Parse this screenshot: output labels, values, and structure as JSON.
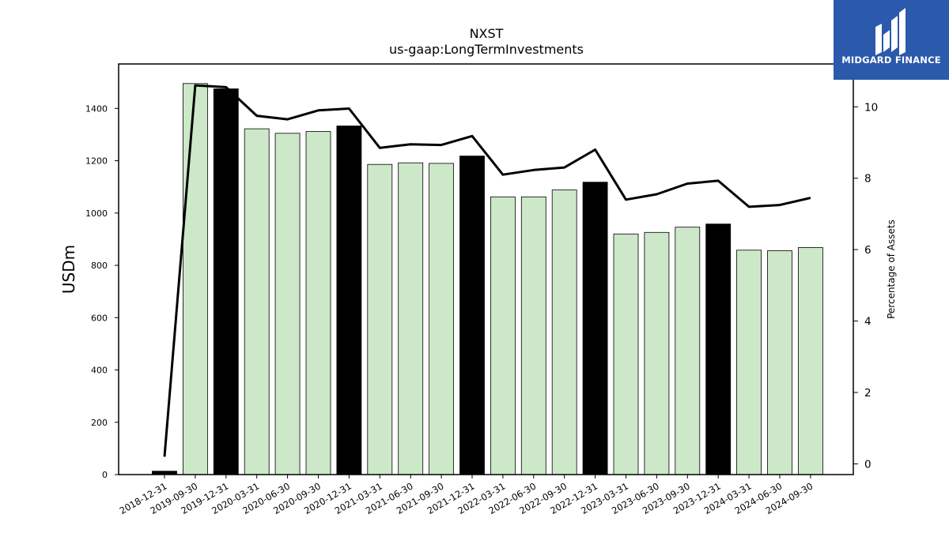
{
  "chart_data": {
    "type": "bar",
    "title": "NXST",
    "subtitle": "us-gaap:LongTermInvestments",
    "ylabel": "USDm",
    "y2label": "Percentage of Assets",
    "ylim": [
      0,
      1570
    ],
    "y2lim": [
      -0.3,
      11.2
    ],
    "yticks": [
      0,
      200,
      400,
      600,
      800,
      1000,
      1200,
      1400
    ],
    "y2ticks": [
      0,
      2,
      4,
      6,
      8,
      10
    ],
    "categories": [
      "2018-12-31",
      "2019-09-30",
      "2019-12-31",
      "2020-03-31",
      "2020-06-30",
      "2020-09-30",
      "2020-12-31",
      "2021-03-31",
      "2021-06-30",
      "2021-09-30",
      "2021-12-31",
      "2022-03-31",
      "2022-06-30",
      "2022-09-30",
      "2022-12-31",
      "2023-03-31",
      "2023-06-30",
      "2023-09-30",
      "2023-12-31",
      "2024-03-31",
      "2024-06-30",
      "2024-09-30"
    ],
    "values": [
      13,
      1495,
      1475,
      1322,
      1305,
      1312,
      1333,
      1186,
      1192,
      1190,
      1218,
      1062,
      1062,
      1088,
      1118,
      920,
      926,
      946,
      958,
      858,
      856,
      868
    ],
    "year_end": [
      true,
      false,
      true,
      false,
      false,
      false,
      true,
      false,
      false,
      false,
      true,
      false,
      false,
      false,
      true,
      false,
      false,
      false,
      true,
      false,
      false,
      false
    ],
    "pct_assets": [
      0.2,
      10.6,
      10.55,
      9.75,
      9.65,
      9.9,
      9.95,
      8.85,
      8.95,
      8.93,
      9.18,
      8.1,
      8.23,
      8.3,
      8.8,
      7.4,
      7.55,
      7.85,
      7.93,
      7.2,
      7.25,
      7.45
    ],
    "colors": {
      "quarter_bar": "#cce8c8",
      "year_end_bar": "#000000",
      "line": "#000000"
    },
    "grid": false
  },
  "logo": {
    "text": "MIDGARD FINANCE",
    "background": "#2b59ab"
  }
}
